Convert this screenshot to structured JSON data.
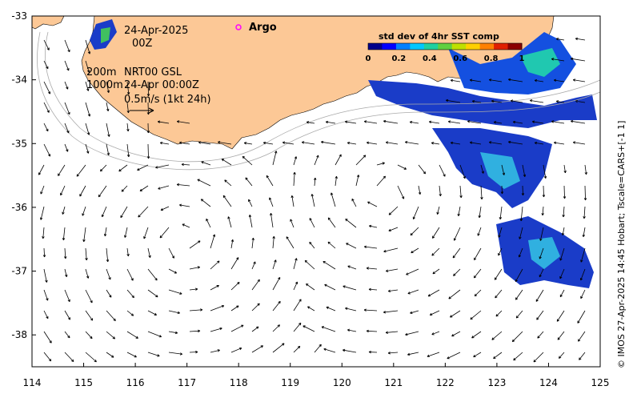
{
  "header": {
    "date": "24-Apr-2025",
    "hour": "00Z"
  },
  "legend": {
    "argo_label": "Argo",
    "argo_color": "#ff00ff",
    "depth_200": "200m",
    "depth_1000": "1000m",
    "product": "NRT00 GSL",
    "product_time": "24-Apr 00:00Z",
    "scale_text": "0.5m/s (1kt 24h)"
  },
  "colorbar": {
    "title": "std dev of 4hr SST comp",
    "ticks": [
      "0",
      "0.2",
      "0.4",
      "0.6",
      "0.8",
      "1"
    ],
    "colors": [
      "#00008b",
      "#0000ff",
      "#0080ff",
      "#00c8ff",
      "#20d0a0",
      "#60d040",
      "#c0e000",
      "#ffd000",
      "#ff8000",
      "#e02000",
      "#8b0000"
    ]
  },
  "credit": "© IMOS 27-Apr-2025 14:45 Hobart; Tscale=CARS+[-1 1]",
  "colors": {
    "land": "#fcc896",
    "sea": "#ffffff",
    "arrow": "#000000",
    "contour": "#aaaaaa"
  },
  "chart_data": {
    "type": "map",
    "x_ticks": [
      "114",
      "115",
      "116",
      "117",
      "118",
      "119",
      "120",
      "121",
      "122",
      "123",
      "124",
      "125"
    ],
    "y_ticks": [
      "-33",
      "-34",
      "-35",
      "-36",
      "-37",
      "-38"
    ],
    "xlim": [
      114,
      125
    ],
    "ylim": [
      -38.5,
      -33
    ]
  }
}
